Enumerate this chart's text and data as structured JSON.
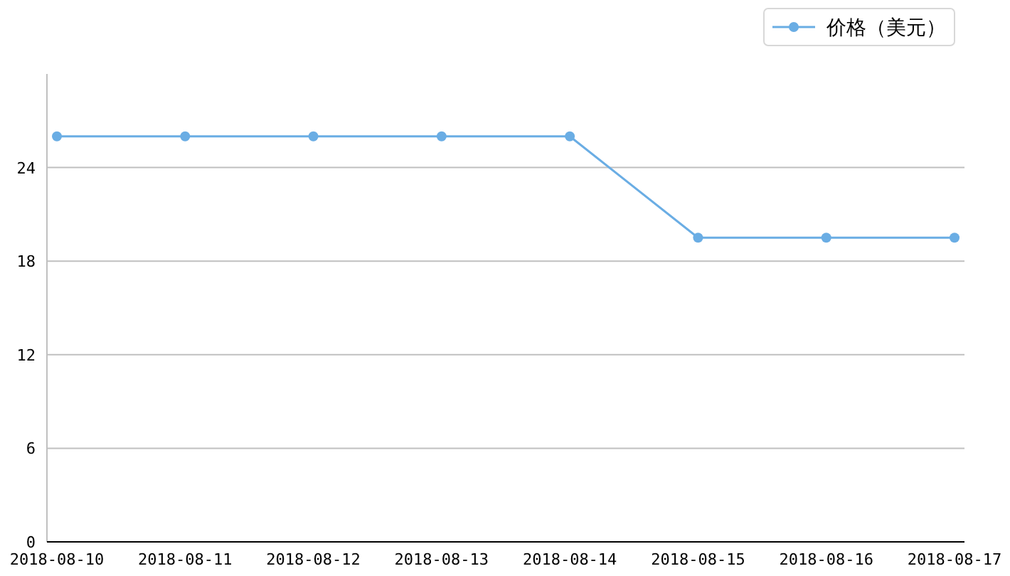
{
  "chart_data": {
    "type": "line",
    "categories": [
      "2018-08-10",
      "2018-08-11",
      "2018-08-12",
      "2018-08-13",
      "2018-08-14",
      "2018-08-15",
      "2018-08-16",
      "2018-08-17"
    ],
    "series": [
      {
        "name": "价格（美元）",
        "color": "#6aade4",
        "values": [
          26,
          26,
          26,
          26,
          26,
          19.5,
          19.5,
          19.5
        ]
      }
    ],
    "ylim": [
      0,
      30
    ],
    "yticks": [
      0,
      6,
      12,
      18,
      24
    ],
    "grid": "y",
    "legend": "top right",
    "marker": "circle",
    "line_style": "solid"
  }
}
